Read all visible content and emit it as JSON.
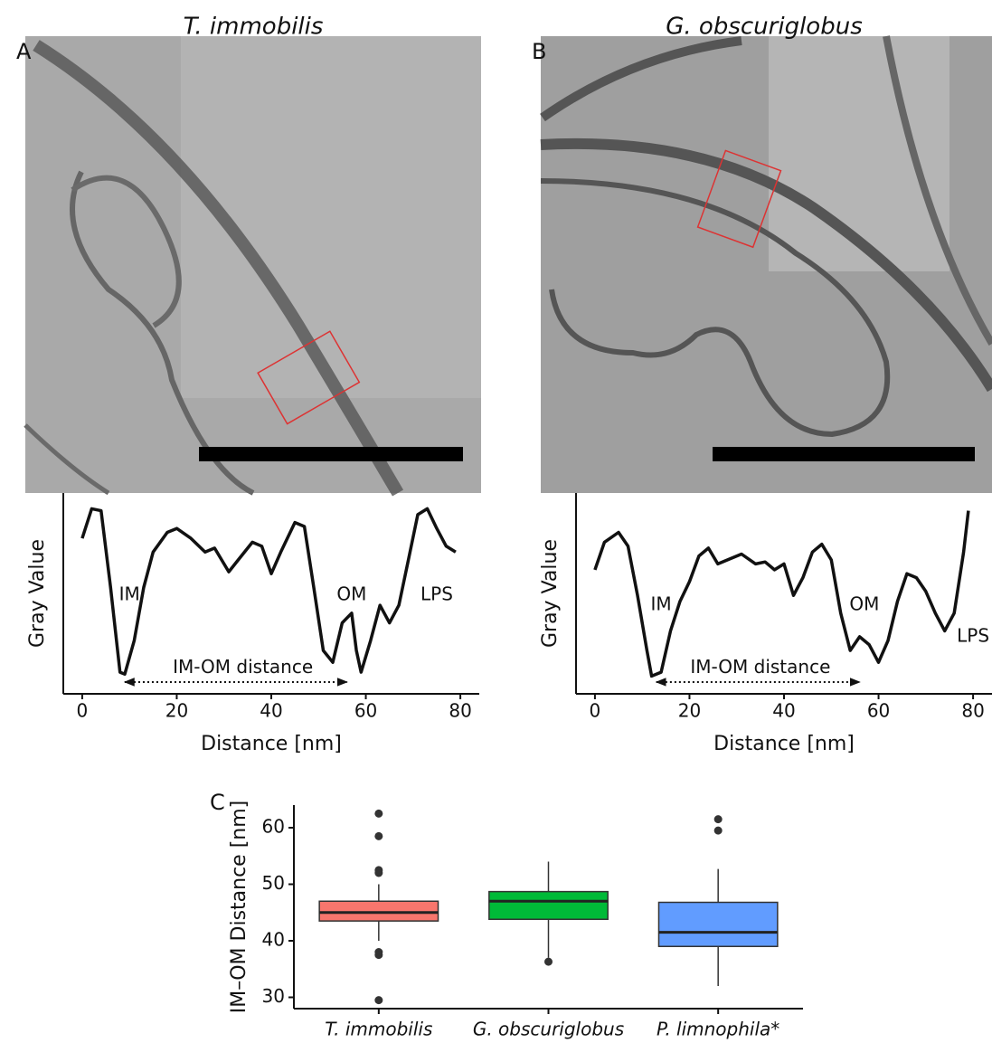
{
  "chart_data": [
    {
      "type": "line",
      "panel": "A",
      "title": "T. immobilis",
      "x_label": "Distance [nm]",
      "y_label": "Gray Value",
      "color": "#111111",
      "x": [
        0,
        2,
        4,
        6,
        8,
        9,
        11,
        13,
        15,
        18,
        20,
        23,
        26,
        28,
        31,
        33,
        36,
        38,
        40,
        42,
        45,
        47,
        49,
        51,
        53,
        55,
        57,
        58,
        59,
        61,
        63,
        65,
        67,
        69,
        71,
        73,
        75,
        77,
        79
      ],
      "values": [
        77,
        92,
        91,
        52,
        9,
        8,
        25,
        52,
        70,
        80,
        82,
        77,
        70,
        72,
        60,
        66,
        75,
        73,
        59,
        70,
        85,
        83,
        52,
        20,
        14,
        34,
        39,
        20,
        9,
        25,
        43,
        34,
        43,
        66,
        89,
        92,
        82,
        73,
        70
      ],
      "xlim": [
        -4,
        84
      ],
      "xticks": [
        0,
        20,
        40,
        60,
        80
      ],
      "ylim": [
        -2,
        100
      ],
      "annotations": [
        {
          "text": "IM",
          "x": 10,
          "y": 48
        },
        {
          "text": "OM",
          "x": 57,
          "y": 48
        },
        {
          "text": "LPS",
          "x": 75,
          "y": 48
        },
        {
          "text": "IM-OM distance",
          "x": 34,
          "y": 11,
          "span": [
            9,
            56
          ],
          "span_y": 4
        }
      ]
    },
    {
      "type": "line",
      "panel": "B",
      "title": "G. obscuriglobus",
      "x_label": "Distance [nm]",
      "y_label": "Gray Value",
      "color": "#111111",
      "x": [
        0,
        2,
        5,
        7,
        9,
        11,
        12,
        14,
        16,
        18,
        20,
        22,
        24,
        26,
        28,
        31,
        34,
        36,
        38,
        40,
        42,
        44,
        46,
        48,
        50,
        52,
        54,
        56,
        58,
        60,
        62,
        64,
        66,
        68,
        70,
        72,
        74,
        76,
        78,
        79
      ],
      "values": [
        61,
        75,
        80,
        73,
        48,
        20,
        7,
        9,
        30,
        45,
        55,
        68,
        72,
        64,
        66,
        69,
        64,
        65,
        61,
        64,
        48,
        57,
        70,
        74,
        66,
        39,
        20,
        27,
        23,
        14,
        25,
        45,
        59,
        57,
        50,
        39,
        30,
        39,
        70,
        91
      ],
      "xlim": [
        -4,
        84
      ],
      "xticks": [
        0,
        20,
        40,
        60,
        80
      ],
      "ylim": [
        -2,
        100
      ],
      "annotations": [
        {
          "text": "IM",
          "x": 14,
          "y": 43
        },
        {
          "text": "OM",
          "x": 57,
          "y": 43
        },
        {
          "text": "LPS",
          "x": 80,
          "y": 27
        },
        {
          "text": "IM-OM distance",
          "x": 35,
          "y": 11,
          "span": [
            13,
            56
          ],
          "span_y": 4
        }
      ]
    },
    {
      "type": "box",
      "panel": "C",
      "y_label": "IM–OM Distance [nm]",
      "categories": [
        "T. immobilis",
        "G. obscuriglobus",
        "P. limnophila*"
      ],
      "colors": [
        "#f8766d",
        "#00ba38",
        "#619cff"
      ],
      "boxes": [
        {
          "low": 40,
          "q1": 43.5,
          "median": 45,
          "q3": 47,
          "high": 50,
          "outliers": [
            62.5,
            58.5,
            52.5,
            52,
            38,
            37.5,
            29.5
          ]
        },
        {
          "low": 37,
          "q1": 43.8,
          "median": 47,
          "q3": 48.7,
          "high": 54,
          "outliers": [
            36.3
          ]
        },
        {
          "low": 32,
          "q1": 39,
          "median": 41.5,
          "q3": 46.8,
          "high": 52.7,
          "outliers": [
            61.5,
            59.5
          ]
        }
      ],
      "ylim": [
        28,
        64
      ],
      "yticks": [
        30,
        40,
        50,
        60
      ]
    }
  ]
}
